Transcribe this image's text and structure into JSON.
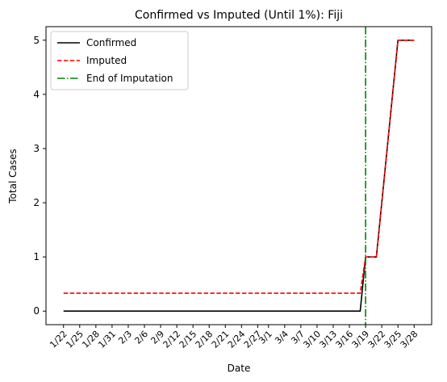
{
  "chart_data": {
    "type": "line",
    "title": "Confirmed vs Imputed (Until 1%): Fiji",
    "xlabel": "Date",
    "ylabel": "Total Cases",
    "x_tick_labels": [
      "1/22",
      "1/25",
      "1/28",
      "1/31",
      "2/3",
      "2/6",
      "2/9",
      "2/12",
      "2/15",
      "2/18",
      "2/21",
      "2/24",
      "2/27",
      "3/1",
      "3/4",
      "3/7",
      "3/10",
      "3/13",
      "3/16",
      "3/19",
      "3/22",
      "3/25",
      "3/28"
    ],
    "y_ticks": [
      0,
      1,
      2,
      3,
      4,
      5
    ],
    "ylim": [
      -0.25,
      5.25
    ],
    "legend_position": "upper-left",
    "series": [
      {
        "name": "Confirmed",
        "color": "#000000",
        "style": "solid",
        "points": [
          [
            "1/22",
            0
          ],
          [
            "3/18",
            0
          ],
          [
            "3/19",
            1
          ],
          [
            "3/21",
            1
          ],
          [
            "3/25",
            5
          ],
          [
            "3/28",
            5
          ]
        ]
      },
      {
        "name": "Imputed",
        "color": "#ff0000",
        "style": "dashed",
        "points": [
          [
            "1/22",
            0.33
          ],
          [
            "3/18",
            0.33
          ],
          [
            "3/19",
            1
          ],
          [
            "3/21",
            1
          ],
          [
            "3/25",
            5
          ],
          [
            "3/28",
            5
          ]
        ]
      }
    ],
    "vline": {
      "name": "End of Imputation",
      "x": "3/19",
      "color": "#008000",
      "style": "dashdot"
    }
  }
}
